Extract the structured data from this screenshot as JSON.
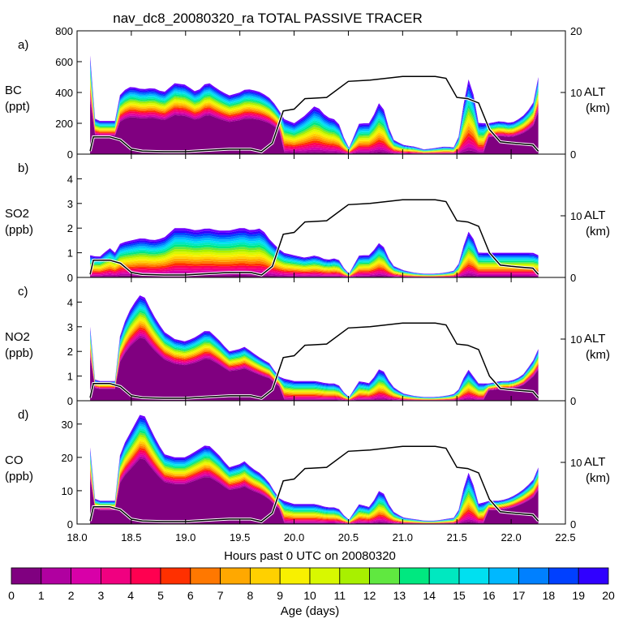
{
  "title": "nav_dc8_20080320_ra TOTAL PASSIVE TRACER",
  "xlabel": "Hours past 0 UTC on 20080320",
  "colorbar": {
    "label": "Age (days)",
    "ticks": [
      "0",
      "1",
      "2",
      "3",
      "4",
      "5",
      "6",
      "7",
      "8",
      "9",
      "10",
      "11",
      "12",
      "13",
      "14",
      "15",
      "16",
      "17",
      "18",
      "19",
      "20"
    ],
    "colors": [
      "#800080",
      "#b000a0",
      "#d800a8",
      "#f00080",
      "#ff0050",
      "#ff3000",
      "#ff7800",
      "#ffa800",
      "#ffd000",
      "#f8f000",
      "#d8f800",
      "#a8f000",
      "#60e840",
      "#00e880",
      "#00e8c0",
      "#00e0f0",
      "#00b8ff",
      "#0080ff",
      "#0040ff",
      "#3000ff",
      "#7000ff"
    ]
  },
  "chart_data": [
    {
      "type": "area",
      "panel": "a)",
      "title": "nav_dc8_20080320_ra TOTAL PASSIVE TRACER",
      "ylabel_species": "BC",
      "ylabel_units": "(ppt)",
      "ylim": [
        0,
        800
      ],
      "yticks": [
        "0",
        "200",
        "400",
        "600",
        "800"
      ],
      "y2label": "ALT",
      "y2units": "(km)",
      "y2ticks": [
        "0",
        "10",
        "20"
      ],
      "xlim": [
        18.0,
        22.5
      ],
      "total_x": [
        18.12,
        18.14,
        18.2,
        18.3,
        18.35,
        18.4,
        18.5,
        18.6,
        18.7,
        18.8,
        18.9,
        19.0,
        19.1,
        19.2,
        19.3,
        19.4,
        19.5,
        19.55,
        19.6,
        19.7,
        19.78,
        19.85,
        19.9,
        20.0,
        20.1,
        20.2,
        20.3,
        20.4,
        20.5,
        20.6,
        20.7,
        20.8,
        20.9,
        21.0,
        21.1,
        21.2,
        21.3,
        21.4,
        21.5,
        21.6,
        21.65,
        21.7,
        21.8,
        21.9,
        22.0,
        22.1,
        22.2,
        22.25
      ],
      "total_y": [
        640,
        240,
        215,
        215,
        215,
        400,
        440,
        420,
        430,
        400,
        460,
        450,
        400,
        470,
        420,
        380,
        400,
        420,
        420,
        400,
        360,
        300,
        230,
        200,
        250,
        320,
        240,
        220,
        30,
        200,
        200,
        360,
        100,
        60,
        50,
        30,
        40,
        50,
        40,
        500,
        400,
        200,
        200,
        215,
        200,
        240,
        320,
        500
      ],
      "mature_fraction": 0.55,
      "altitude_km_x": [
        18.12,
        18.15,
        18.3,
        18.4,
        18.5,
        18.6,
        18.8,
        19.0,
        19.2,
        19.4,
        19.6,
        19.7,
        19.8,
        19.9,
        20.0,
        20.1,
        20.3,
        20.5,
        20.7,
        20.9,
        21.0,
        21.1,
        21.3,
        21.4,
        21.5,
        21.6,
        21.7,
        21.8,
        21.9,
        22.0,
        22.2,
        22.25
      ],
      "altitude_km_y": [
        0.5,
        2.8,
        2.8,
        2.3,
        0.8,
        0.5,
        0.4,
        0.4,
        0.6,
        0.8,
        0.8,
        0.4,
        1.8,
        7.0,
        7.3,
        9.0,
        9.2,
        11.8,
        12.0,
        12.4,
        12.6,
        12.6,
        12.6,
        12.3,
        9.2,
        9.0,
        8.3,
        4.0,
        2.0,
        1.8,
        1.5,
        0.5
      ]
    },
    {
      "type": "area",
      "panel": "b)",
      "ylabel_species": "SO2",
      "ylabel_units": "(ppb)",
      "ylim": [
        0,
        5
      ],
      "yticks": [
        "0",
        "1",
        "2",
        "3",
        "4"
      ],
      "y2label": "ALT",
      "y2units": "(km)",
      "y2ticks": [
        "0",
        "10"
      ],
      "xlim": [
        18.0,
        22.5
      ],
      "total_x": [
        18.12,
        18.14,
        18.2,
        18.3,
        18.35,
        18.4,
        18.5,
        18.6,
        18.7,
        18.8,
        18.9,
        19.0,
        19.1,
        19.2,
        19.3,
        19.4,
        19.5,
        19.55,
        19.6,
        19.7,
        19.78,
        19.85,
        19.9,
        20.0,
        20.1,
        20.2,
        20.3,
        20.4,
        20.5,
        20.6,
        20.7,
        20.8,
        20.9,
        21.0,
        21.1,
        21.2,
        21.3,
        21.4,
        21.5,
        21.6,
        21.65,
        21.7,
        21.8,
        21.9,
        22.0,
        22.1,
        22.2,
        22.25
      ],
      "total_y": [
        0.9,
        0.9,
        0.8,
        1.2,
        1.0,
        1.4,
        1.5,
        1.6,
        1.5,
        1.6,
        2.0,
        2.0,
        1.9,
        2.0,
        1.9,
        1.9,
        2.0,
        2.0,
        1.9,
        2.0,
        1.5,
        1.2,
        1.0,
        0.9,
        0.8,
        0.9,
        0.7,
        0.8,
        0.1,
        0.9,
        0.9,
        1.5,
        0.5,
        0.3,
        0.2,
        0.15,
        0.15,
        0.2,
        0.3,
        1.9,
        1.6,
        1.0,
        1.0,
        1.0,
        1.0,
        1.0,
        1.0,
        0.9
      ],
      "mature_fraction": 0.05,
      "altitude_km_x": [
        18.12,
        18.15,
        18.3,
        18.4,
        18.5,
        18.6,
        18.8,
        19.0,
        19.2,
        19.4,
        19.6,
        19.7,
        19.8,
        19.9,
        20.0,
        20.1,
        20.3,
        20.5,
        20.7,
        20.9,
        21.0,
        21.1,
        21.3,
        21.4,
        21.5,
        21.6,
        21.7,
        21.8,
        21.9,
        22.0,
        22.2,
        22.25
      ],
      "altitude_km_y": [
        0.5,
        2.8,
        2.8,
        2.3,
        0.8,
        0.5,
        0.4,
        0.4,
        0.6,
        0.8,
        0.8,
        0.4,
        1.8,
        7.0,
        7.3,
        9.0,
        9.2,
        11.8,
        12.0,
        12.4,
        12.6,
        12.6,
        12.6,
        12.3,
        9.2,
        9.0,
        8.3,
        4.0,
        2.0,
        1.8,
        1.5,
        0.5
      ]
    },
    {
      "type": "area",
      "panel": "c)",
      "ylabel_species": "NO2",
      "ylabel_units": "(ppb)",
      "ylim": [
        0,
        5
      ],
      "yticks": [
        "0",
        "1",
        "2",
        "3",
        "4"
      ],
      "y2label": "ALT",
      "y2units": "(km)",
      "y2ticks": [
        "0",
        "10"
      ],
      "xlim": [
        18.0,
        22.5
      ],
      "total_x": [
        18.12,
        18.14,
        18.2,
        18.3,
        18.35,
        18.4,
        18.5,
        18.6,
        18.7,
        18.8,
        18.9,
        19.0,
        19.1,
        19.2,
        19.3,
        19.4,
        19.5,
        19.55,
        19.6,
        19.7,
        19.78,
        19.85,
        19.9,
        20.0,
        20.1,
        20.2,
        20.3,
        20.4,
        20.5,
        20.6,
        20.7,
        20.8,
        20.9,
        21.0,
        21.1,
        21.2,
        21.3,
        21.4,
        21.5,
        21.6,
        21.65,
        21.7,
        21.8,
        21.9,
        22.0,
        22.1,
        22.2,
        22.25
      ],
      "total_y": [
        3.0,
        0.9,
        0.8,
        0.8,
        0.8,
        2.8,
        3.8,
        4.4,
        3.5,
        2.8,
        2.5,
        2.4,
        2.6,
        2.9,
        2.5,
        2.0,
        2.1,
        2.2,
        2.0,
        1.7,
        1.5,
        1.0,
        0.9,
        0.8,
        0.8,
        0.8,
        0.7,
        0.7,
        0.1,
        0.8,
        0.7,
        1.4,
        0.6,
        0.3,
        0.2,
        0.15,
        0.15,
        0.2,
        0.3,
        1.3,
        1.0,
        0.7,
        0.7,
        0.8,
        0.8,
        1.0,
        1.6,
        2.1
      ],
      "mature_fraction": 0.6,
      "altitude_km_x": [
        18.12,
        18.15,
        18.3,
        18.4,
        18.5,
        18.6,
        18.8,
        19.0,
        19.2,
        19.4,
        19.6,
        19.7,
        19.8,
        19.9,
        20.0,
        20.1,
        20.3,
        20.5,
        20.7,
        20.9,
        21.0,
        21.1,
        21.3,
        21.4,
        21.5,
        21.6,
        21.7,
        21.8,
        21.9,
        22.0,
        22.2,
        22.25
      ],
      "altitude_km_y": [
        0.5,
        2.8,
        2.8,
        2.3,
        0.8,
        0.5,
        0.4,
        0.4,
        0.6,
        0.8,
        0.8,
        0.4,
        1.8,
        7.0,
        7.3,
        9.0,
        9.2,
        11.8,
        12.0,
        12.4,
        12.6,
        12.6,
        12.6,
        12.3,
        9.2,
        9.0,
        8.3,
        4.0,
        2.0,
        1.8,
        1.5,
        0.5
      ]
    },
    {
      "type": "area",
      "panel": "d)",
      "ylabel_species": "CO",
      "ylabel_units": "(ppb)",
      "ylim": [
        0,
        37
      ],
      "yticks": [
        "0",
        "10",
        "20",
        "30"
      ],
      "y2label": "ALT",
      "y2units": "(km)",
      "y2ticks": [
        "0",
        "10"
      ],
      "xlim": [
        18.0,
        22.5
      ],
      "total_x": [
        18.12,
        18.14,
        18.2,
        18.3,
        18.35,
        18.4,
        18.5,
        18.6,
        18.7,
        18.8,
        18.9,
        19.0,
        19.1,
        19.2,
        19.3,
        19.4,
        19.5,
        19.55,
        19.6,
        19.7,
        19.78,
        19.85,
        19.9,
        20.0,
        20.1,
        20.2,
        20.3,
        20.4,
        20.5,
        20.6,
        20.7,
        20.8,
        20.9,
        21.0,
        21.1,
        21.2,
        21.3,
        21.4,
        21.5,
        21.6,
        21.65,
        21.7,
        21.8,
        21.9,
        22.0,
        22.1,
        22.2,
        22.25
      ],
      "total_y": [
        23,
        8,
        7,
        7,
        7,
        22,
        28,
        34,
        27,
        21,
        20,
        20,
        22,
        24,
        21,
        17,
        18,
        19,
        17,
        15,
        12,
        8,
        7,
        6,
        6,
        6,
        5,
        5,
        1,
        6,
        5,
        11,
        4,
        2,
        1.5,
        1,
        1,
        1.5,
        2,
        16,
        12,
        6,
        7,
        7,
        8,
        10,
        13,
        17
      ],
      "mature_fraction": 0.6,
      "altitude_km_x": [
        18.12,
        18.15,
        18.3,
        18.4,
        18.5,
        18.6,
        18.8,
        19.0,
        19.2,
        19.4,
        19.6,
        19.7,
        19.8,
        19.9,
        20.0,
        20.1,
        20.3,
        20.5,
        20.7,
        20.9,
        21.0,
        21.1,
        21.3,
        21.4,
        21.5,
        21.6,
        21.7,
        21.8,
        21.9,
        22.0,
        22.2,
        22.25
      ],
      "altitude_km_y": [
        0.5,
        2.8,
        2.8,
        2.3,
        0.8,
        0.5,
        0.4,
        0.4,
        0.6,
        0.8,
        0.8,
        0.4,
        1.8,
        7.0,
        7.3,
        9.0,
        9.2,
        11.8,
        12.0,
        12.4,
        12.6,
        12.6,
        12.6,
        12.3,
        9.2,
        9.0,
        8.3,
        4.0,
        2.0,
        1.8,
        1.5,
        0.5
      ]
    }
  ],
  "xticks": [
    "18.0",
    "18.5",
    "19.0",
    "19.5",
    "20.0",
    "20.5",
    "21.0",
    "21.5",
    "22.0",
    "22.5"
  ]
}
